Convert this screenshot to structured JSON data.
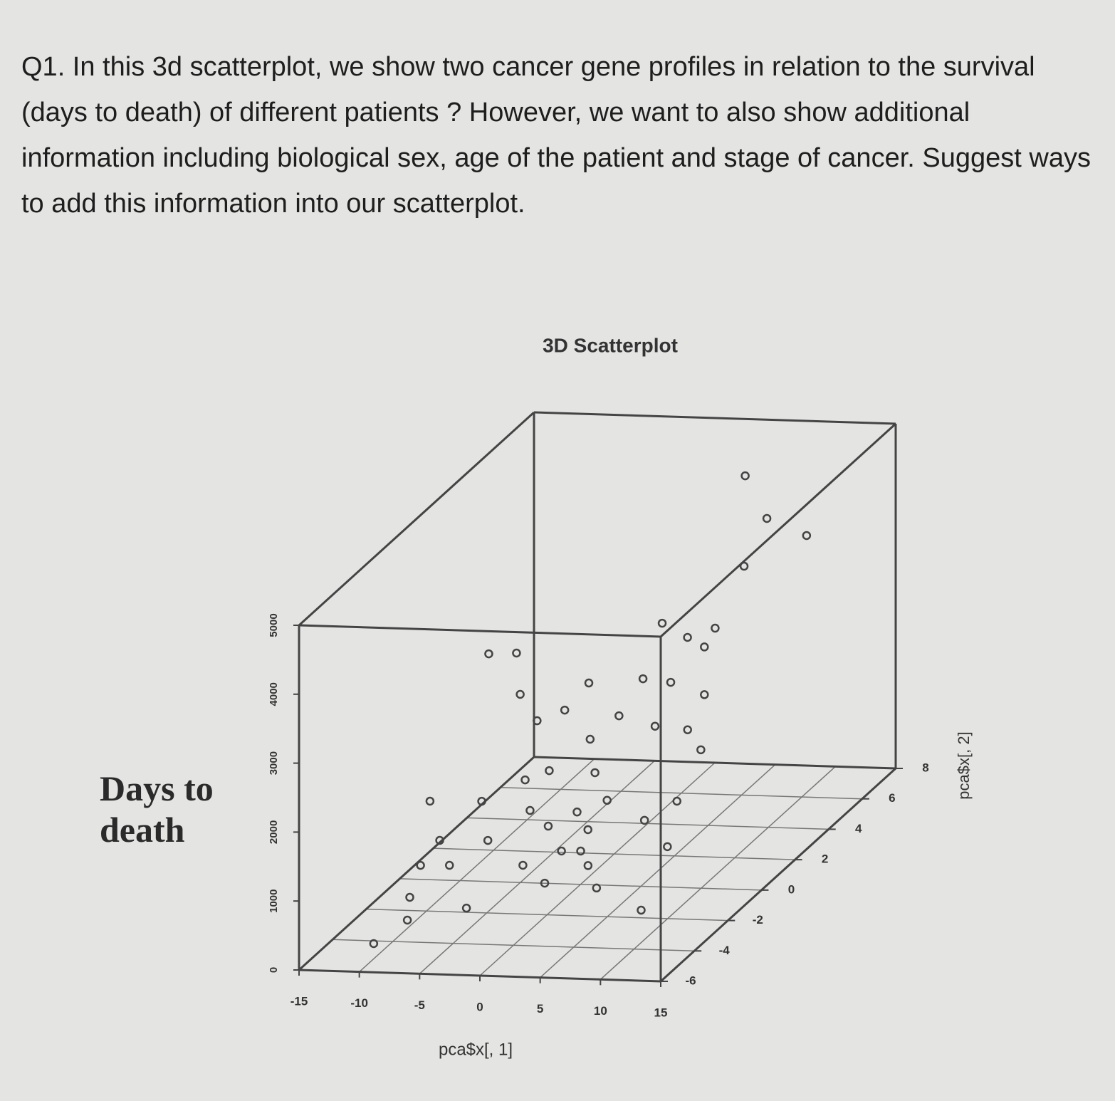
{
  "question": "Q1. In this 3d scatterplot, we show two cancer gene profiles in relation to the survival (days to death) of different patients ? However, we want to also show additional information including biological sex, age of the patient and stage of cancer. Suggest ways to add this information into our scatterplot.",
  "chart_data": {
    "type": "scatter3d",
    "title": "3D Scatterplot",
    "xlabel": "pca$x[, 1]",
    "ylabel": "pca$x[, 2]",
    "zlabel": "Days to death",
    "xlim": [
      -15,
      15
    ],
    "xticks": [
      -15,
      -10,
      -5,
      0,
      5,
      10,
      15
    ],
    "ylim": [
      -6,
      8
    ],
    "yticks": [
      -6,
      -4,
      -2,
      0,
      2,
      4,
      6,
      8
    ],
    "zlim": [
      0,
      5000
    ],
    "zticks": [
      0,
      1000,
      2000,
      3000,
      4000,
      5000
    ],
    "grid": true,
    "color": "#444444",
    "x": [
      5.3,
      7.1,
      9.0,
      6.6,
      1.2,
      3.3,
      4.2,
      4.7,
      -8.1,
      -10.4,
      -2.1,
      1.0,
      3.3,
      -6.4,
      4.7,
      -4.1,
      0.4,
      -5.0,
      2.0,
      4.7,
      -0.6,
      5.8,
      -2.6,
      -0.2,
      -4.6,
      -11.1,
      -8.2,
      -2.8,
      1.1,
      2.2,
      6.6,
      5.3,
      0.1,
      2.0,
      -6.3,
      -8.9,
      7.2,
      1.2,
      1.4,
      -6.7,
      -9.1,
      -2.0,
      3.4,
      1.2,
      5.5,
      -8.6,
      -8.8,
      -3.9,
      9.2,
      -10.2
    ],
    "y": [
      6,
      6,
      7,
      5,
      4,
      4,
      5,
      4,
      2,
      2,
      2,
      3,
      3,
      1,
      4,
      2,
      2,
      1,
      3,
      3,
      1,
      3,
      0,
      1,
      0,
      -1,
      0,
      -1,
      -1,
      0,
      1,
      0,
      -2,
      -1,
      -1,
      -2,
      0,
      -2,
      -1,
      -3,
      -3,
      -2,
      -2,
      -3,
      -3,
      -4,
      -4,
      -4,
      -3,
      -5
    ],
    "z": [
      4633,
      4024,
      3566,
      3549,
      2913,
      2719,
      2637,
      2588,
      2870,
      2846,
      2469,
      2327,
      2288,
      2501,
      1896,
      2065,
      2007,
      2126,
      1644,
      1607,
      1882,
      1323,
      1636,
      1399,
      1491,
      1367,
      1161,
      1278,
      1277,
      1232,
      1023,
      959,
      1287,
      1026,
      824,
      1031,
      587,
      932,
      712,
      902,
      888,
      708,
      733,
      687,
      640,
      648,
      316,
      517,
      339,
      188
    ]
  }
}
